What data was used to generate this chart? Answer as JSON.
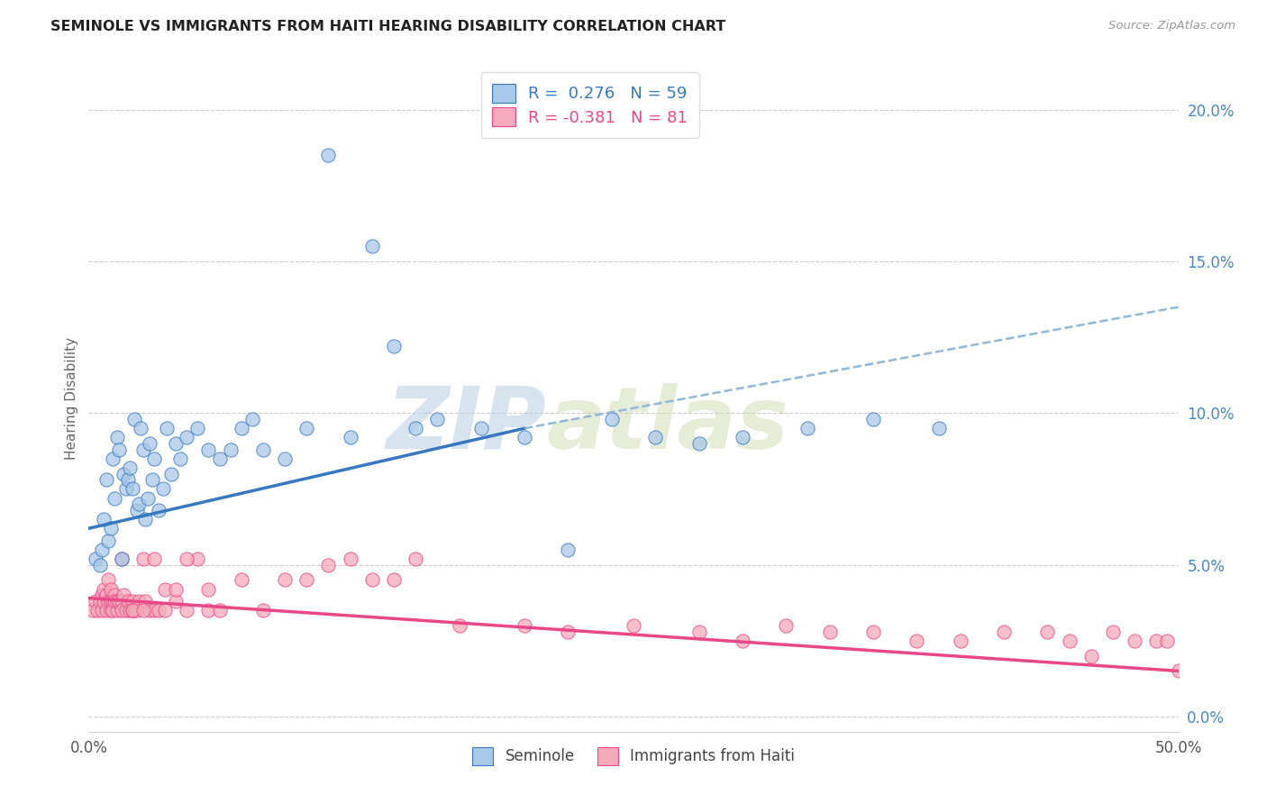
{
  "title": "SEMINOLE VS IMMIGRANTS FROM HAITI HEARING DISABILITY CORRELATION CHART",
  "source": "Source: ZipAtlas.com",
  "ylabel": "Hearing Disability",
  "right_ytick_vals": [
    0.0,
    5.0,
    10.0,
    15.0,
    20.0
  ],
  "xlim": [
    0.0,
    50.0
  ],
  "ylim": [
    -0.5,
    21.5
  ],
  "seminole_color": "#a8c8e8",
  "haiti_color": "#f4aaba",
  "seminole_line_color": "#3878c0",
  "haiti_line_color": "#e84888",
  "dashed_line_color": "#90b8d8",
  "watermark_zip": "ZIP",
  "watermark_atlas": "atlas",
  "legend_seminole_label": "R =  0.276   N = 59",
  "legend_haiti_label": "R = -0.381   N = 81",
  "legend_bottom_seminole": "Seminole",
  "legend_bottom_haiti": "Immigrants from Haiti",
  "seminole_x": [
    0.3,
    0.5,
    0.6,
    0.7,
    0.8,
    0.9,
    1.0,
    1.1,
    1.2,
    1.3,
    1.4,
    1.5,
    1.6,
    1.7,
    1.8,
    1.9,
    2.0,
    2.1,
    2.2,
    2.3,
    2.4,
    2.5,
    2.6,
    2.7,
    2.8,
    2.9,
    3.0,
    3.2,
    3.4,
    3.6,
    3.8,
    4.0,
    4.2,
    4.5,
    5.0,
    5.5,
    6.0,
    6.5,
    7.0,
    7.5,
    8.0,
    9.0,
    10.0,
    11.0,
    12.0,
    13.0,
    14.0,
    15.0,
    16.0,
    18.0,
    20.0,
    22.0,
    24.0,
    26.0,
    28.0,
    30.0,
    33.0,
    36.0,
    39.0
  ],
  "seminole_y": [
    5.2,
    5.0,
    5.5,
    6.5,
    7.8,
    5.8,
    6.2,
    8.5,
    7.2,
    9.2,
    8.8,
    5.2,
    8.0,
    7.5,
    7.8,
    8.2,
    7.5,
    9.8,
    6.8,
    7.0,
    9.5,
    8.8,
    6.5,
    7.2,
    9.0,
    7.8,
    8.5,
    6.8,
    7.5,
    9.5,
    8.0,
    9.0,
    8.5,
    9.2,
    9.5,
    8.8,
    8.5,
    8.8,
    9.5,
    9.8,
    8.8,
    8.5,
    9.5,
    18.5,
    9.2,
    15.5,
    12.2,
    9.5,
    9.8,
    9.5,
    9.2,
    5.5,
    9.8,
    9.2,
    9.0,
    9.2,
    9.5,
    9.8,
    9.5
  ],
  "haiti_x": [
    0.2,
    0.3,
    0.4,
    0.5,
    0.6,
    0.6,
    0.7,
    0.7,
    0.8,
    0.8,
    0.9,
    0.9,
    1.0,
    1.0,
    1.0,
    1.1,
    1.1,
    1.2,
    1.2,
    1.3,
    1.3,
    1.4,
    1.5,
    1.5,
    1.6,
    1.7,
    1.8,
    1.9,
    2.0,
    2.0,
    2.1,
    2.2,
    2.3,
    2.5,
    2.6,
    2.8,
    3.0,
    3.2,
    3.5,
    4.0,
    4.5,
    5.0,
    5.5,
    6.0,
    7.0,
    8.0,
    9.0,
    10.0,
    11.0,
    12.0,
    13.0,
    14.0,
    15.0,
    17.0,
    20.0,
    22.0,
    25.0,
    28.0,
    30.0,
    32.0,
    34.0,
    36.0,
    38.0,
    40.0,
    42.0,
    44.0,
    45.0,
    46.0,
    47.0,
    48.0,
    49.0,
    49.5,
    50.0,
    1.5,
    2.0,
    2.5,
    3.0,
    3.5,
    4.0,
    4.5,
    5.5
  ],
  "haiti_y": [
    3.5,
    3.8,
    3.5,
    3.8,
    4.0,
    3.5,
    3.8,
    4.2,
    4.0,
    3.5,
    3.8,
    4.5,
    3.8,
    4.2,
    3.5,
    3.8,
    3.5,
    4.0,
    3.8,
    3.5,
    3.8,
    3.8,
    3.8,
    3.5,
    4.0,
    3.5,
    3.8,
    3.5,
    3.8,
    3.5,
    3.5,
    3.5,
    3.8,
    5.2,
    3.8,
    3.5,
    3.5,
    3.5,
    3.5,
    3.8,
    3.5,
    5.2,
    3.5,
    3.5,
    4.5,
    3.5,
    4.5,
    4.5,
    5.0,
    5.2,
    4.5,
    4.5,
    5.2,
    3.0,
    3.0,
    2.8,
    3.0,
    2.8,
    2.5,
    3.0,
    2.8,
    2.8,
    2.5,
    2.5,
    2.8,
    2.8,
    2.5,
    2.0,
    2.8,
    2.5,
    2.5,
    2.5,
    1.5,
    5.2,
    3.5,
    3.5,
    5.2,
    4.2,
    4.2,
    5.2,
    4.2
  ],
  "sem_line_x0": 0.0,
  "sem_line_x1": 20.0,
  "sem_line_y0": 6.2,
  "sem_line_y1": 9.5,
  "sem_dash_x0": 20.0,
  "sem_dash_x1": 50.0,
  "sem_dash_y0": 9.5,
  "sem_dash_y1": 13.5,
  "hai_line_x0": 0.0,
  "hai_line_x1": 50.0,
  "hai_line_y0": 3.9,
  "hai_line_y1": 1.5
}
